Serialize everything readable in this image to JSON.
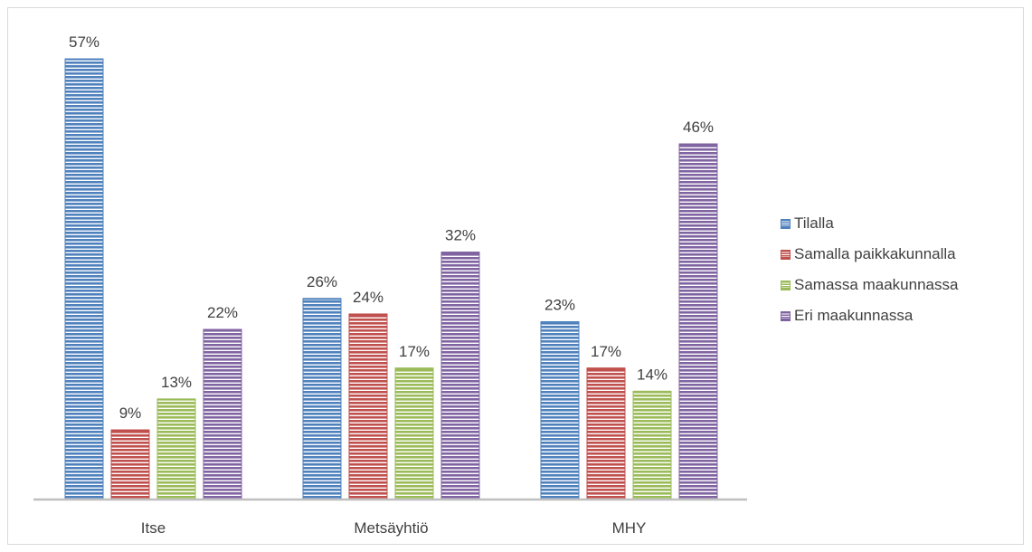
{
  "chart_data": {
    "type": "bar",
    "categories": [
      "Itse",
      "Metsäyhtiö",
      "MHY"
    ],
    "series": [
      {
        "name": "Tilalla",
        "values": [
          57,
          26,
          23
        ],
        "color": "#4f81bd"
      },
      {
        "name": "Samalla paikkakunnalla",
        "values": [
          9,
          24,
          17
        ],
        "color": "#c0504d"
      },
      {
        "name": "Samassa maakunnassa",
        "values": [
          13,
          17,
          14
        ],
        "color": "#9bbb59"
      },
      {
        "name": "Eri maakunnassa",
        "values": [
          22,
          32,
          46
        ],
        "color": "#8064a2"
      }
    ],
    "value_suffix": "%",
    "ylim": [
      0,
      60
    ],
    "grid": false,
    "legend_position": "right",
    "bar_pattern": "horizontal-stripes"
  }
}
